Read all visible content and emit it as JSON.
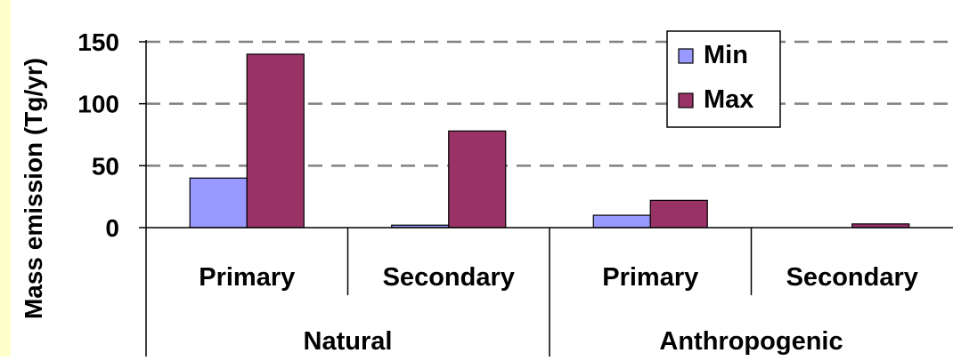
{
  "chart_data": {
    "type": "bar",
    "ylabel": "Mass emission (Tg/yr)",
    "ylim": [
      0,
      150
    ],
    "yticks": [
      0,
      50,
      100,
      150
    ],
    "categories": [
      "Primary",
      "Secondary",
      "Primary",
      "Secondary"
    ],
    "groups": [
      {
        "label": "Natural",
        "categories": [
          "Primary",
          "Secondary"
        ]
      },
      {
        "label": "Anthropogenic",
        "categories": [
          "Primary",
          "Secondary"
        ]
      }
    ],
    "series": [
      {
        "name": "Min",
        "values": [
          40,
          2,
          10,
          0
        ],
        "color": "#9999ff"
      },
      {
        "name": "Max",
        "values": [
          140,
          78,
          22,
          3
        ],
        "color": "#993366"
      }
    ],
    "grid": "dashed horizontal",
    "legend_position": "top-right",
    "colors": {
      "left_strip": "#ffffcc"
    }
  }
}
